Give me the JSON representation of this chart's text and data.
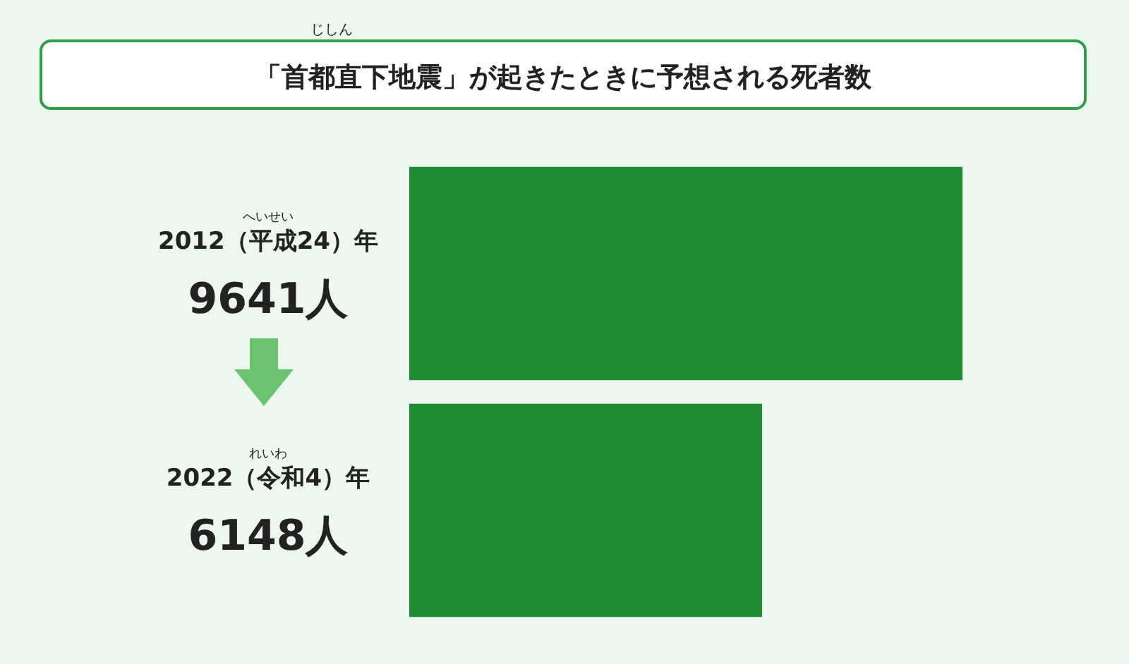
{
  "chart_data": {
    "type": "bar",
    "orientation": "horizontal",
    "title": "「首都直下地震」が起きたときに予想される死者数",
    "categories": [
      "2012（平成24）年",
      "2022（令和4）年"
    ],
    "values": [
      9641,
      6148
    ],
    "value_labels": [
      "9641人",
      "6148人"
    ],
    "color": "#1e8c32",
    "annotations": [
      "じしん",
      "へいせい",
      "れいわ"
    ]
  }
}
